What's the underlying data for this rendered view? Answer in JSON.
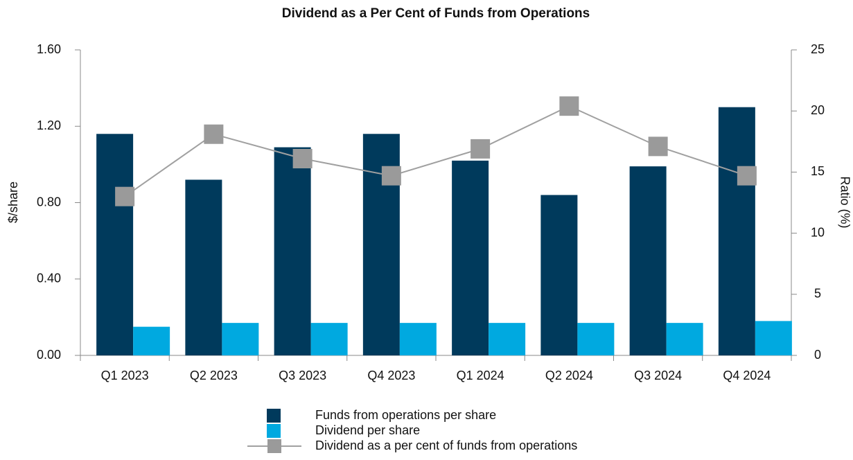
{
  "chart_data": {
    "type": "bar_line",
    "title": "Dividend as a Per Cent of Funds from Operations",
    "ylabel": "$/share",
    "y2label": "Ratio (%)",
    "categories": [
      "Q1 2023",
      "Q2 2023",
      "Q3 2023",
      "Q4 2023",
      "Q1 2024",
      "Q2 2024",
      "Q3 2024",
      "Q4 2024"
    ],
    "series": [
      {
        "name": "Funds from operations per share",
        "type": "bar",
        "color": "#003a5c",
        "values": [
          1.16,
          0.92,
          1.09,
          1.16,
          1.02,
          0.84,
          0.99,
          1.3
        ]
      },
      {
        "name": "Dividend per share",
        "type": "bar",
        "color": "#00a9e0",
        "values": [
          0.15,
          0.17,
          0.17,
          0.17,
          0.17,
          0.17,
          0.17,
          0.18
        ]
      },
      {
        "name": "Dividend as a per cent of funds from operations",
        "type": "line",
        "axis": "y2",
        "color": "#a0a0a0",
        "marker_color": "#9a9a9a",
        "values": [
          13.0,
          18.1,
          16.1,
          14.7,
          16.9,
          20.4,
          17.1,
          14.7
        ]
      }
    ],
    "ylim": [
      0,
      1.6
    ],
    "yticks": [
      {
        "value": 0,
        "label": "0.00"
      },
      {
        "value": 0.4,
        "label": "0.40"
      },
      {
        "value": 0.8,
        "label": "0.80"
      },
      {
        "value": 1.2,
        "label": "1.20"
      },
      {
        "value": 1.6,
        "label": "1.60"
      }
    ],
    "y2lim": [
      0,
      25
    ],
    "y2ticks": [
      0,
      5,
      10,
      15,
      20,
      25
    ],
    "legend": "bottom"
  }
}
